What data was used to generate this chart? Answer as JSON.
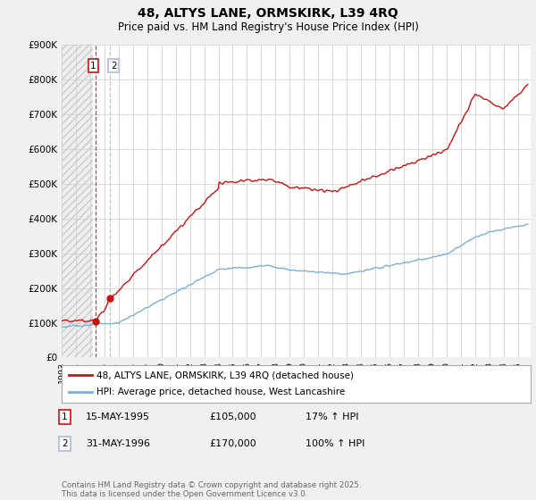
{
  "title_line1": "48, ALTYS LANE, ORMSKIRK, L39 4RQ",
  "title_line2": "Price paid vs. HM Land Registry's House Price Index (HPI)",
  "background_color": "#f0f0f0",
  "plot_bg_color": "#ffffff",
  "hpi_color": "#7bafd4",
  "price_color": "#cc1111",
  "transaction1": {
    "date": 1995.37,
    "price": 105000
  },
  "transaction2": {
    "date": 1996.41,
    "price": 170000
  },
  "legend_line1": "48, ALTYS LANE, ORMSKIRK, L39 4RQ (detached house)",
  "legend_line2": "HPI: Average price, detached house, West Lancashire",
  "annotation1_date": "15-MAY-1995",
  "annotation1_price": "£105,000",
  "annotation1_hpi": "17% ↑ HPI",
  "annotation2_date": "31-MAY-1996",
  "annotation2_price": "£170,000",
  "annotation2_hpi": "100% ↑ HPI",
  "footer": "Contains HM Land Registry data © Crown copyright and database right 2025.\nThis data is licensed under the Open Government Licence v3.0.",
  "xmin": 1993,
  "xmax": 2025.9,
  "ylim": [
    0,
    900000
  ],
  "ytick_values": [
    0,
    100000,
    200000,
    300000,
    400000,
    500000,
    600000,
    700000,
    800000,
    900000
  ],
  "ytick_labels": [
    "£0",
    "£100K",
    "£200K",
    "£300K",
    "£400K",
    "£500K",
    "£600K",
    "£700K",
    "£800K",
    "£900K"
  ]
}
